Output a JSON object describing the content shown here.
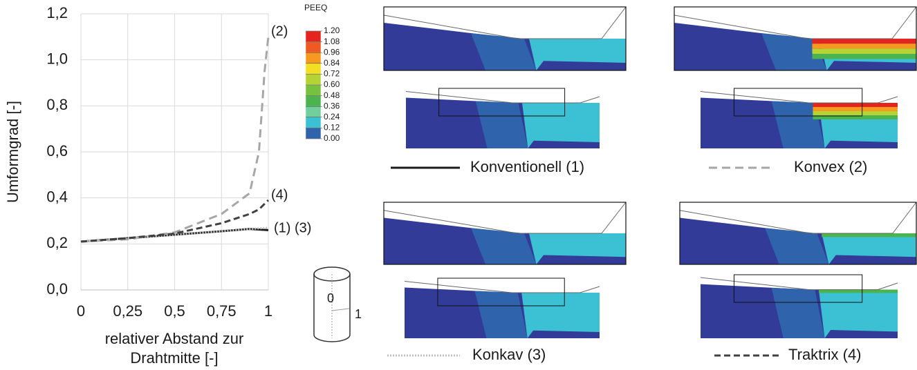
{
  "chart_data": {
    "type": "line",
    "ylabel": "Umformgrad [-]",
    "xlabel": [
      "relativer Abstand zur",
      "Drahtmitte [-]"
    ],
    "xlim": [
      0,
      1
    ],
    "ylim": [
      0,
      1.2
    ],
    "xticks": [
      0,
      {
        "value": 0.25,
        "label": "0,25"
      },
      {
        "value": 0.5,
        "label": "0,5"
      },
      {
        "value": 0.75,
        "label": "0,75"
      },
      1
    ],
    "yticks": [
      {
        "value": 0,
        "label": "0,0"
      },
      {
        "value": 0.2,
        "label": "0,2"
      },
      {
        "value": 0.4,
        "label": "0,4"
      },
      {
        "value": 0.6,
        "label": "0,6"
      },
      {
        "value": 0.8,
        "label": "0,8"
      },
      {
        "value": 1,
        "label": "1,0"
      },
      {
        "value": 1.2,
        "label": "1,2"
      }
    ],
    "grid": true,
    "series": [
      {
        "name": "Konventionell (1)",
        "color": "#1a1a1a",
        "dash": "none",
        "x": [
          0,
          0.25,
          0.5,
          0.75,
          0.9,
          1
        ],
        "values": [
          0.21,
          0.225,
          0.24,
          0.255,
          0.265,
          0.26
        ]
      },
      {
        "name": "Konvex (2)",
        "color": "#a6a6a6",
        "dash": "12,7",
        "x": [
          0,
          0.25,
          0.5,
          0.75,
          0.9,
          0.95,
          0.98,
          1
        ],
        "values": [
          0.21,
          0.22,
          0.25,
          0.33,
          0.42,
          0.6,
          0.95,
          1.1
        ]
      },
      {
        "name": "Konkav (3)",
        "color": "#bfbfbf",
        "dash": "2,2",
        "x": [
          0,
          0.25,
          0.5,
          0.75,
          0.9,
          1
        ],
        "values": [
          0.21,
          0.225,
          0.24,
          0.255,
          0.265,
          0.27
        ]
      },
      {
        "name": "Traktrix (4)",
        "color": "#404040",
        "dash": "9,5",
        "x": [
          0,
          0.25,
          0.5,
          0.75,
          0.9,
          0.95,
          1
        ],
        "values": [
          0.21,
          0.225,
          0.245,
          0.29,
          0.33,
          0.35,
          0.39
        ]
      }
    ],
    "annotations": [
      "(2)",
      "(4)",
      "(1) (3)"
    ]
  },
  "fem_colorbar": {
    "title": "PEEQ",
    "ticks": [
      {
        "value": 1.2,
        "label": "1.20"
      },
      {
        "value": 1.08,
        "label": "1.08"
      },
      {
        "value": 0.96,
        "label": "0.96"
      },
      {
        "value": 0.84,
        "label": "0.84"
      },
      {
        "value": 0.72,
        "label": "0.72"
      },
      {
        "value": 0.6,
        "label": "0.60"
      },
      {
        "value": 0.48,
        "label": "0.48"
      },
      {
        "value": 0.36,
        "label": "0.36"
      },
      {
        "value": 0.24,
        "label": "0.24"
      },
      {
        "value": 0.12,
        "label": "0.12"
      },
      {
        "value": 0,
        "label": "0.00"
      }
    ],
    "colors": [
      "#e3241f",
      "#ef5a22",
      "#f69a1f",
      "#f2de23",
      "#b5d334",
      "#78c13f",
      "#4bb44f",
      "#70cf9a",
      "#3cc1d4",
      "#2f64ac",
      "#333b98"
    ]
  },
  "cylinder": {
    "labels": [
      "0",
      "1"
    ]
  }
}
